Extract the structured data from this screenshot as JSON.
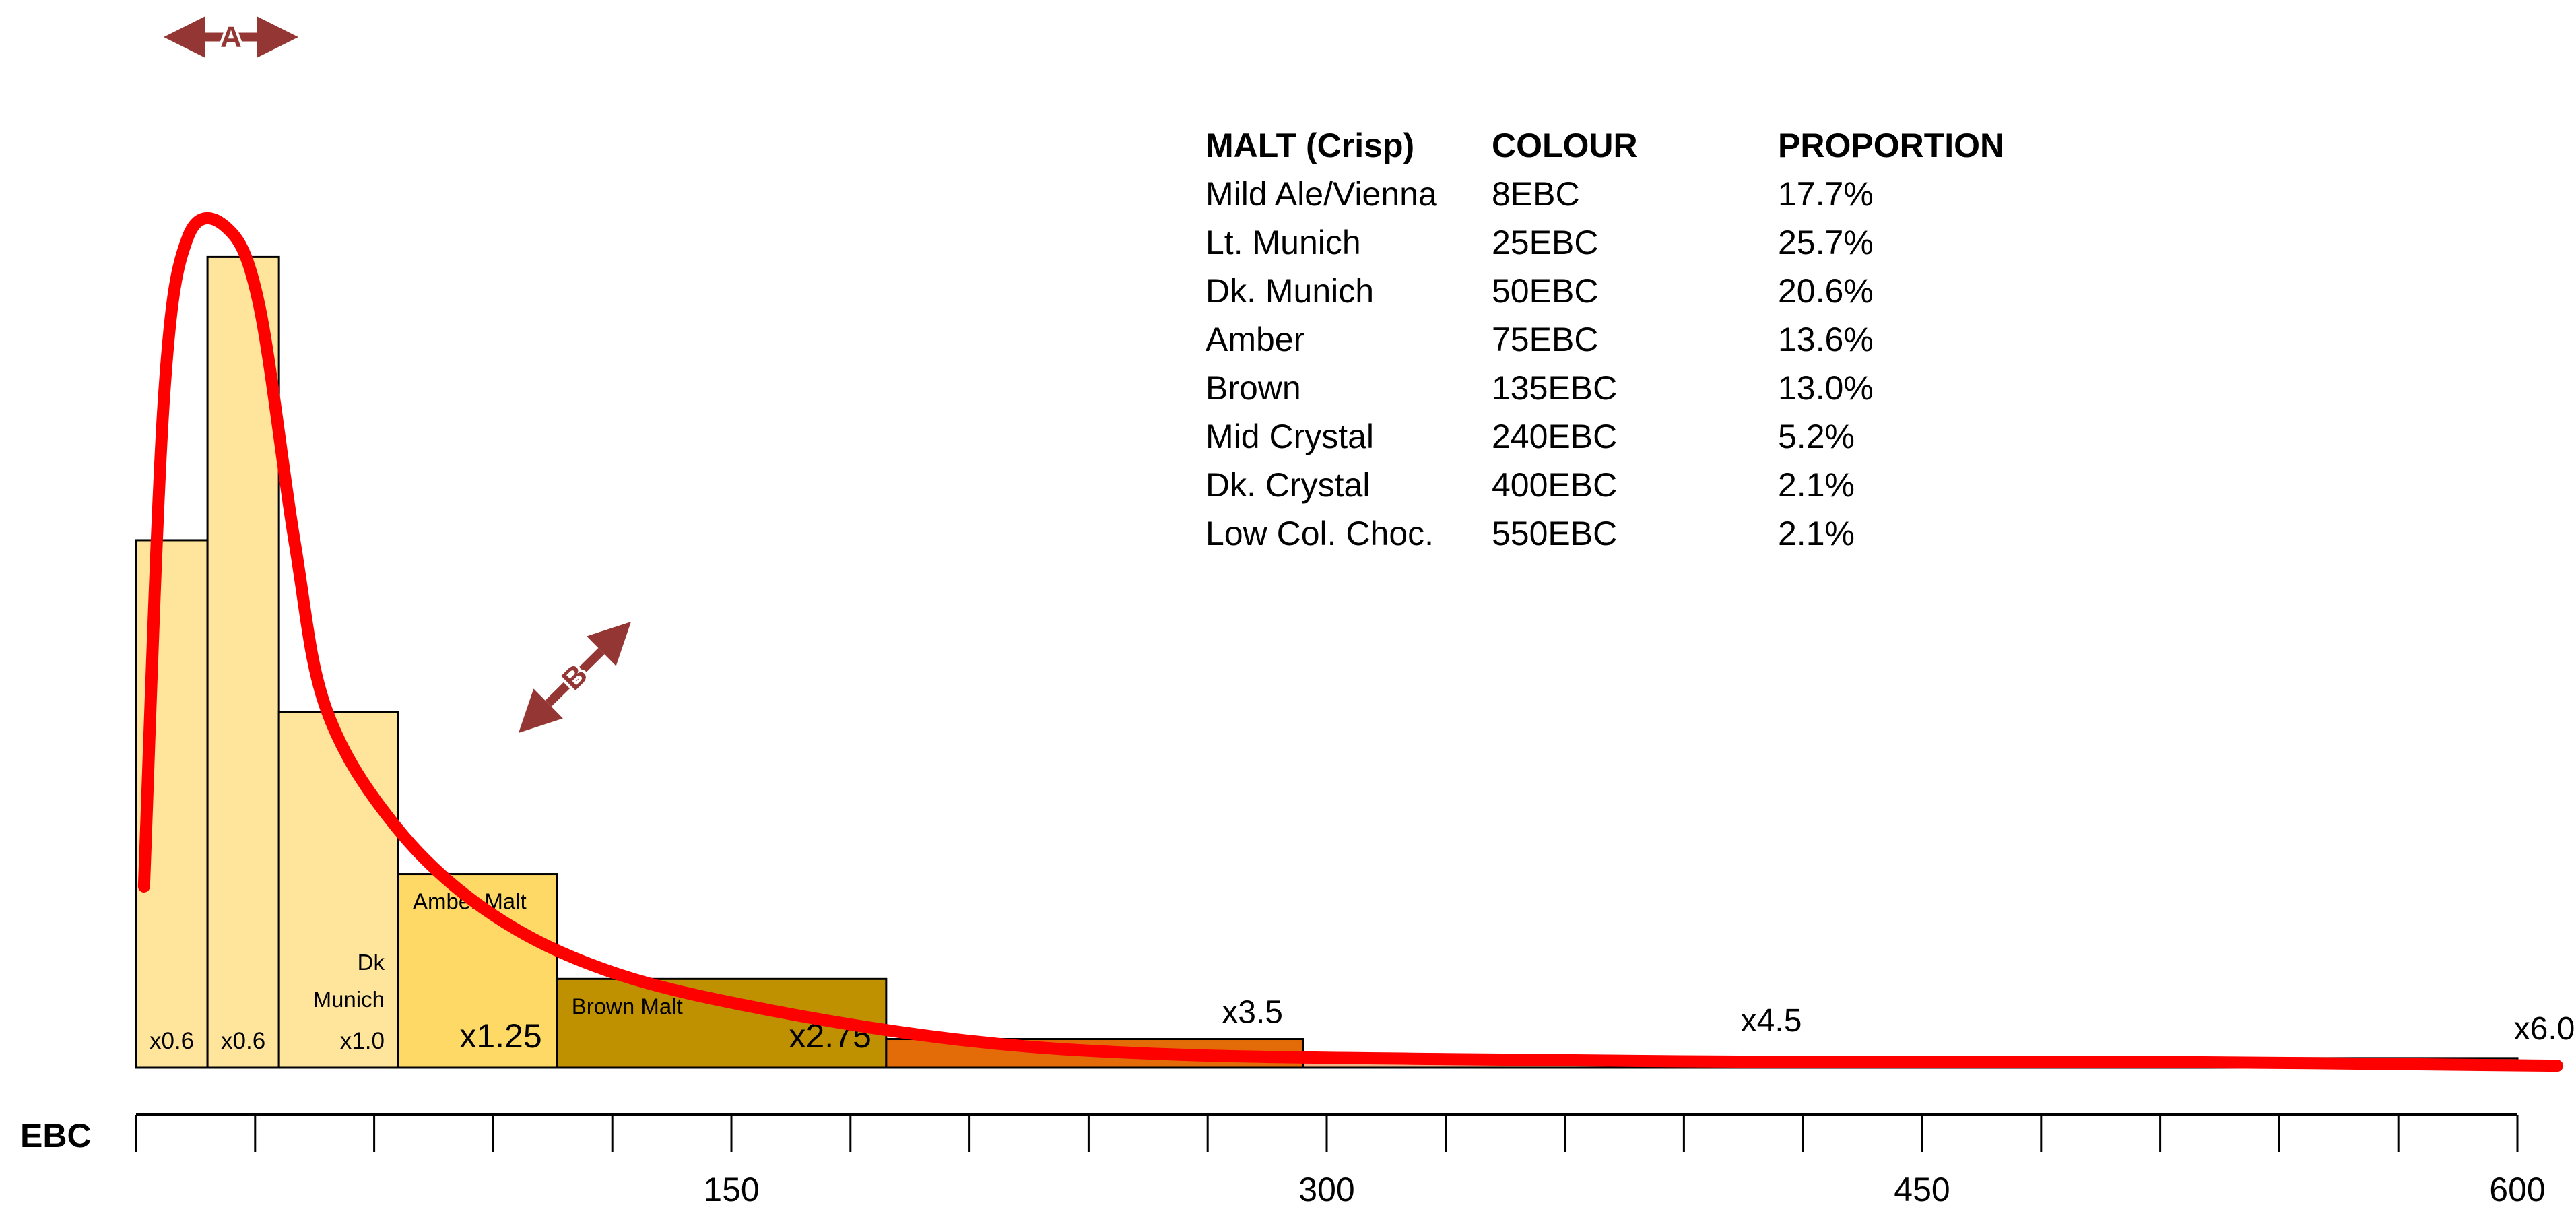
{
  "chart_data": {
    "type": "bar",
    "x_label": "EBC",
    "xlim": [
      0,
      600
    ],
    "x_ticks": [
      0,
      30,
      60,
      90,
      120,
      150,
      180,
      210,
      240,
      270,
      300,
      330,
      360,
      390,
      420,
      450,
      480,
      510,
      540,
      570,
      600
    ],
    "x_tick_labels": [
      {
        "value": 150,
        "label": "150"
      },
      {
        "value": 300,
        "label": "300"
      },
      {
        "value": 450,
        "label": "450"
      },
      {
        "value": 600,
        "label": "600"
      }
    ],
    "bars": [
      {
        "x0": 0,
        "x1": 18,
        "height": 55.3,
        "color": "#FFE49B",
        "labels": [
          {
            "text": "x0.6",
            "size": "small"
          }
        ]
      },
      {
        "x0": 18,
        "x1": 36,
        "height": 85.0,
        "color": "#FFE49B",
        "labels": [
          {
            "text": "x0.6",
            "size": "small"
          }
        ]
      },
      {
        "x0": 36,
        "x1": 66,
        "height": 37.3,
        "color": "#FFE49B",
        "labels": [
          {
            "text": "Dk",
            "size": "small"
          },
          {
            "text": "Munich",
            "size": "small"
          },
          {
            "text": "x1.0",
            "size": "small"
          }
        ]
      },
      {
        "x0": 66,
        "x1": 106,
        "height": 20.3,
        "color": "#FFD966",
        "labels": [
          {
            "text": "Amber Malt",
            "size": "small"
          },
          {
            "text": "x1.25",
            "size": "large"
          }
        ]
      },
      {
        "x0": 106,
        "x1": 189,
        "height": 9.3,
        "color": "#BF9000",
        "labels": [
          {
            "text": "Brown Malt",
            "size": "small"
          },
          {
            "text": "x2.75",
            "size": "large"
          }
        ]
      },
      {
        "x0": 189,
        "x1": 294,
        "height": 3.0,
        "color": "#E36C09",
        "labels": [
          {
            "text": "x3.5",
            "size": "large",
            "position": "above"
          }
        ]
      },
      {
        "x0": 294,
        "x1": 600,
        "height": 1.0,
        "color": "#F4B183",
        "labels": [
          {
            "text": "x4.5",
            "size": "large",
            "position": "above"
          },
          {
            "text": "x6.0",
            "size": "large",
            "position": "above-right"
          }
        ]
      }
    ],
    "curve": {
      "color": "#FF0000",
      "points": [
        [
          2,
          19.0
        ],
        [
          7,
          70.0
        ],
        [
          13,
          87.0
        ],
        [
          23,
          88.0
        ],
        [
          31,
          80.0
        ],
        [
          40,
          55.0
        ],
        [
          48,
          37.5
        ],
        [
          66,
          25.0
        ],
        [
          90,
          16.0
        ],
        [
          120,
          10.0
        ],
        [
          160,
          6.0
        ],
        [
          210,
          2.8
        ],
        [
          260,
          1.4
        ],
        [
          330,
          0.9
        ],
        [
          420,
          0.6
        ],
        [
          510,
          0.6
        ],
        [
          610,
          0.2
        ]
      ]
    },
    "annotations": [
      {
        "label": "A",
        "type": "horizontal-double-arrow",
        "color": "#943634"
      },
      {
        "label": "B",
        "type": "diagonal-double-arrow",
        "color": "#943634"
      }
    ]
  },
  "table": {
    "headers": [
      "MALT (Crisp)",
      "COLOUR",
      "PROPORTION"
    ],
    "rows": [
      [
        "Mild Ale/Vienna",
        "8EBC",
        "17.7%"
      ],
      [
        "Lt. Munich",
        "25EBC",
        "25.7%"
      ],
      [
        "Dk. Munich",
        "50EBC",
        "20.6%"
      ],
      [
        "Amber",
        "75EBC",
        "13.6%"
      ],
      [
        "Brown",
        "135EBC",
        "13.0%"
      ],
      [
        "Mid Crystal",
        "240EBC",
        "5.2%"
      ],
      [
        "Dk. Crystal",
        "400EBC",
        "2.1%"
      ],
      [
        "Low Col. Choc.",
        "550EBC",
        "2.1%"
      ]
    ]
  }
}
